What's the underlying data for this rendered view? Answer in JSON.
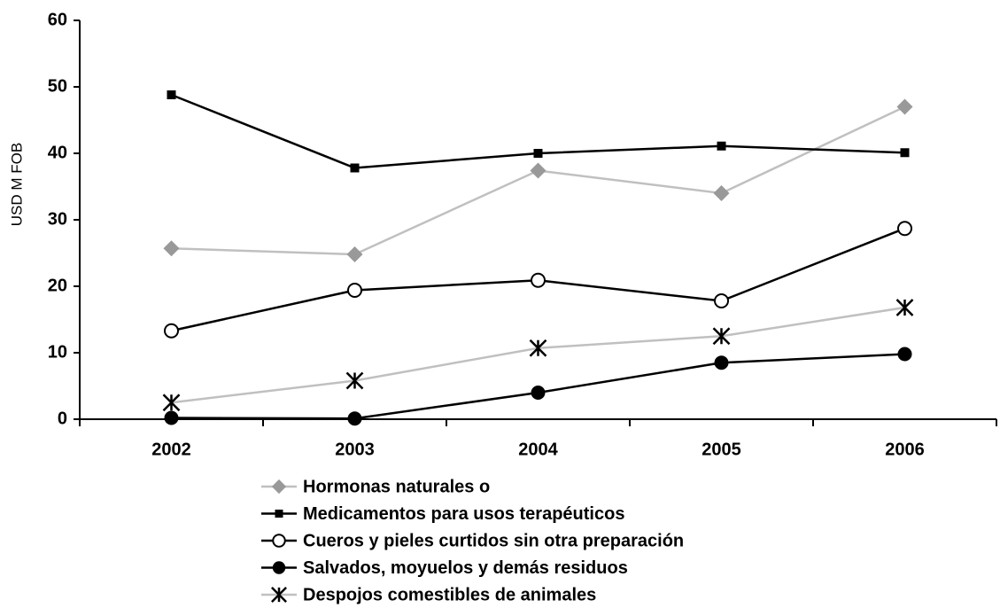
{
  "chart_data": {
    "type": "line",
    "y_label": "USD M FOB",
    "categories": [
      "2002",
      "2003",
      "2004",
      "2005",
      "2006"
    ],
    "ylim": [
      0,
      60
    ],
    "yticks": [
      0,
      10,
      20,
      30,
      40,
      50,
      60
    ],
    "legend": "bottom",
    "series": [
      {
        "name": "Hormonas naturales o",
        "color": "#c0c0c0",
        "marker_color": "#999999",
        "marker": "diamond",
        "values": [
          25.7,
          24.8,
          37.4,
          34.0,
          47.0
        ]
      },
      {
        "name": "Medicamentos para usos terapéuticos",
        "color": "#000000",
        "marker_color": "#000000",
        "marker": "square",
        "values": [
          48.8,
          37.8,
          40.0,
          41.1,
          40.1
        ]
      },
      {
        "name": "Cueros y pieles curtidos sin otra preparación",
        "color": "#000000",
        "marker_color": "#000000",
        "marker": "open-circle",
        "values": [
          13.3,
          19.4,
          20.9,
          17.8,
          28.7
        ]
      },
      {
        "name": "Salvados, moyuelos y demás residuos",
        "color": "#000000",
        "marker_color": "#000000",
        "marker": "circle",
        "values": [
          0.2,
          0.1,
          4.0,
          8.5,
          9.8
        ]
      },
      {
        "name": "Despojos comestibles de animales",
        "color": "#c0c0c0",
        "marker_color": "#000000",
        "marker": "asterisk",
        "values": [
          2.5,
          5.8,
          10.7,
          12.5,
          16.8
        ]
      }
    ]
  }
}
